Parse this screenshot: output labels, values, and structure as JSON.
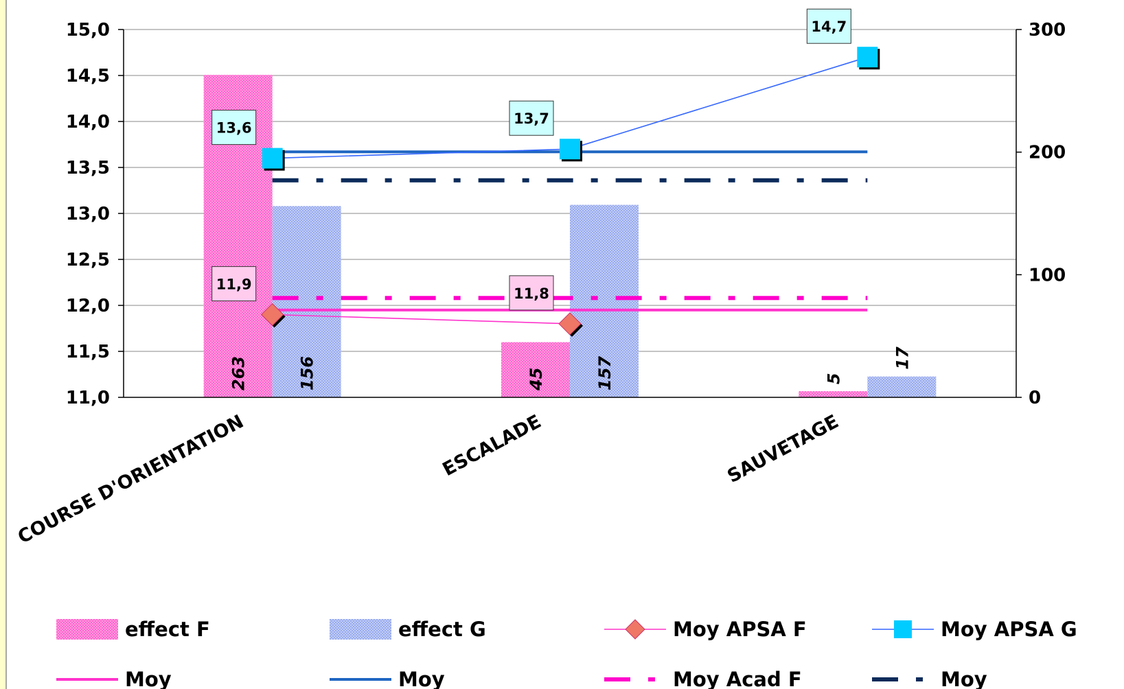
{
  "chart_data": {
    "type": "bar",
    "categories": [
      "COURSE D'ORIENTATION",
      "ESCALADE",
      "SAUVETAGE"
    ],
    "bar_series": [
      {
        "name": "effect F",
        "values": [
          263,
          45,
          5
        ],
        "color": "#ff66cc"
      },
      {
        "name": "effect G",
        "values": [
          156,
          157,
          17
        ],
        "color": "#99aaee"
      }
    ],
    "line_series": [
      {
        "name": "Moy APSA F",
        "values": [
          11.9,
          11.8
        ],
        "labels": [
          "11,9",
          "11,8"
        ],
        "color": "#ff33cc",
        "marker": "diamond",
        "marker_color": "#ee7766"
      },
      {
        "name": "Moy APSA G",
        "values": [
          13.6,
          13.7,
          14.7
        ],
        "labels": [
          "13,6",
          "13,7",
          "14,7"
        ],
        "color": "#3366ff",
        "marker": "square",
        "marker_color": "#00ccff"
      }
    ],
    "reference_lines": [
      {
        "name": "Moy",
        "value": 11.95,
        "color": "#ff33cc",
        "style": "solid"
      },
      {
        "name": "Moy",
        "value": 13.67,
        "color": "#1f66c2",
        "style": "solid"
      },
      {
        "name": "Moy Acad F",
        "value": 12.08,
        "color": "#ff00cc",
        "style": "dashdot"
      },
      {
        "name": "Moy",
        "value": 13.36,
        "color": "#0b2a5a",
        "style": "dashdot"
      }
    ],
    "y_left": {
      "min": 11.0,
      "max": 15.0,
      "step": 0.5,
      "ticks": [
        "11,0",
        "11,5",
        "12,0",
        "12,5",
        "13,0",
        "13,5",
        "14,0",
        "14,5",
        "15,0"
      ]
    },
    "y_right": {
      "min": 0,
      "max": 300,
      "ticks": [
        "0",
        "100",
        "200",
        "300"
      ]
    },
    "grid": true,
    "legend_position": "bottom"
  }
}
